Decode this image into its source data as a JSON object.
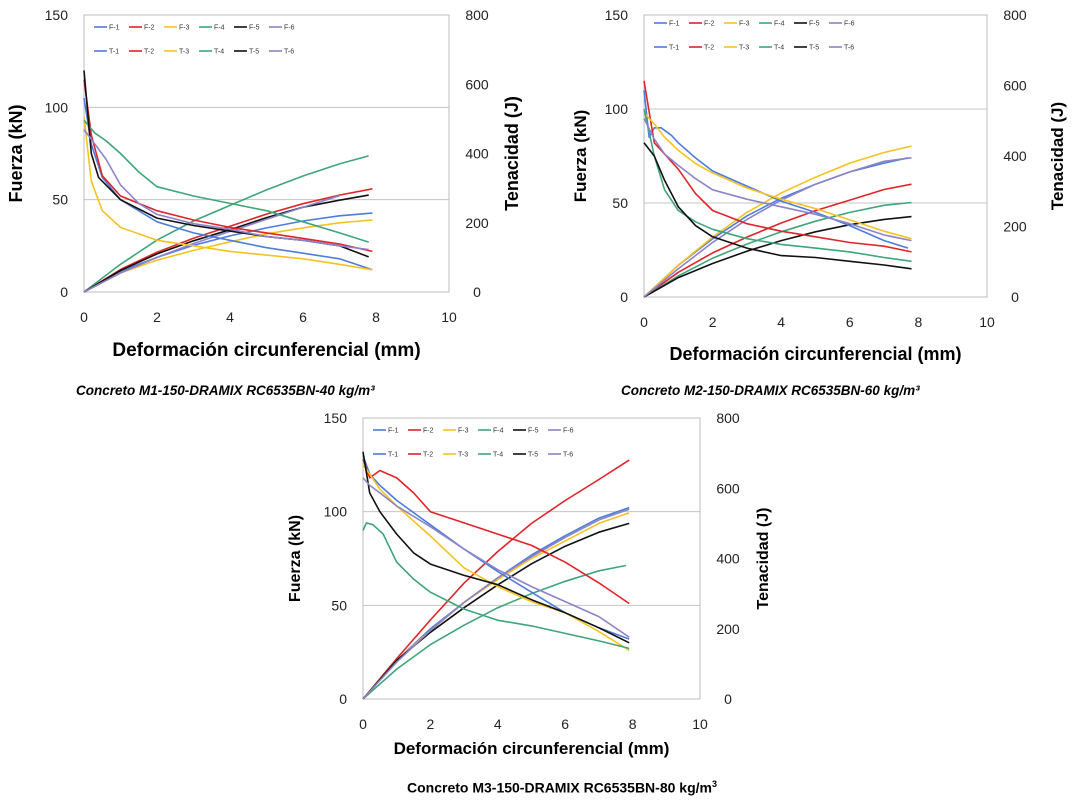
{
  "colors": {
    "series1": "#4f7ddb",
    "series2": "#e0242a",
    "series3": "#f5c31f",
    "series4": "#3fa57a",
    "series5": "#111111",
    "series6": "#8c84c8",
    "grid": "#c4c4c4"
  },
  "chart_data": [
    {
      "type": "line",
      "title": "",
      "caption": "Concreto M1-150-DRAMIX RC6535BN-40 kg/m³",
      "xlabel": "Deformación circunferencial (mm)",
      "ylabel": "Fuerza (kN)",
      "y2label": "Tenacidad (J)",
      "xlim": [
        0,
        10
      ],
      "ylim": [
        0,
        150
      ],
      "y2lim": [
        0,
        800
      ],
      "xticks": [
        "0",
        "2",
        "4",
        "6",
        "8",
        "10"
      ],
      "yticks": [
        "0",
        "50",
        "100",
        "150"
      ],
      "y2ticks": [
        "0",
        "200",
        "400",
        "600",
        "800"
      ],
      "grid": "horizontal",
      "legend": "top-left",
      "legend_row1": [
        "F-1",
        "F-2",
        "F-3",
        "F-4",
        "F-5",
        "F-6"
      ],
      "legend_row2": [
        "T-1",
        "T-2",
        "T-3",
        "T-4",
        "T-5",
        "T-6"
      ],
      "force_series": [
        {
          "name": "F-1",
          "x": [
            0,
            0.2,
            0.5,
            1,
            2,
            3,
            4,
            5,
            6,
            7,
            7.9
          ],
          "y": [
            105,
            80,
            62,
            50,
            38,
            32,
            28,
            24,
            21,
            18,
            12
          ]
        },
        {
          "name": "F-2",
          "x": [
            0,
            0.2,
            0.5,
            1,
            2,
            3,
            4,
            5,
            6,
            7,
            7.9
          ],
          "y": [
            115,
            85,
            63,
            52,
            44,
            39,
            35,
            32,
            29,
            26,
            22
          ]
        },
        {
          "name": "F-3",
          "x": [
            0,
            0.2,
            0.5,
            1,
            2,
            3,
            4,
            5,
            6,
            7,
            7.9
          ],
          "y": [
            95,
            60,
            44,
            35,
            28,
            25,
            22,
            20,
            18,
            15,
            12
          ]
        },
        {
          "name": "F-4",
          "x": [
            0,
            0.3,
            0.6,
            1,
            1.5,
            2,
            3,
            4,
            5,
            6,
            7,
            7.8
          ],
          "y": [
            93,
            86,
            82,
            75,
            65,
            57,
            52,
            48,
            44,
            38,
            32,
            27
          ]
        },
        {
          "name": "F-5",
          "x": [
            0,
            0.2,
            0.4,
            1,
            2,
            3,
            4,
            5,
            6,
            7,
            7.8
          ],
          "y": [
            120,
            75,
            62,
            50,
            40,
            36,
            33,
            30,
            28,
            25,
            19
          ]
        },
        {
          "name": "F-6",
          "x": [
            0,
            0.3,
            0.6,
            1,
            1.5,
            2,
            3,
            4,
            5,
            6,
            7,
            7.8
          ],
          "y": [
            88,
            80,
            72,
            58,
            48,
            42,
            37,
            34,
            30,
            28,
            25,
            23
          ]
        }
      ],
      "toughness_series": [
        {
          "name": "T-1",
          "x": [
            0,
            1,
            2,
            3,
            4,
            5,
            6,
            7,
            7.9
          ],
          "y": [
            0,
            60,
            100,
            135,
            162,
            185,
            205,
            220,
            228
          ]
        },
        {
          "name": "T-2",
          "x": [
            0,
            1,
            2,
            3,
            4,
            5,
            6,
            7,
            7.9
          ],
          "y": [
            0,
            65,
            115,
            155,
            190,
            225,
            255,
            280,
            298
          ]
        },
        {
          "name": "T-3",
          "x": [
            0,
            1,
            2,
            3,
            4,
            5,
            6,
            7,
            7.9
          ],
          "y": [
            0,
            55,
            92,
            120,
            145,
            168,
            185,
            200,
            208
          ]
        },
        {
          "name": "T-4",
          "x": [
            0,
            1,
            2,
            3,
            4,
            5,
            6,
            7,
            7.8
          ],
          "y": [
            0,
            80,
            150,
            205,
            250,
            295,
            335,
            370,
            393
          ]
        },
        {
          "name": "T-5",
          "x": [
            0,
            1,
            2,
            3,
            4,
            5,
            6,
            7,
            7.8
          ],
          "y": [
            0,
            62,
            110,
            148,
            180,
            215,
            245,
            265,
            280
          ]
        },
        {
          "name": "T-6",
          "x": [
            0,
            1,
            2,
            3,
            4,
            5,
            6,
            7
          ],
          "y": [
            0,
            55,
            100,
            140,
            175,
            210,
            245,
            278
          ]
        }
      ]
    },
    {
      "type": "line",
      "title": "",
      "caption": "Concreto M2-150-DRAMIX RC6535BN-60 kg/m³",
      "xlabel": "Deformación circunferencial (mm)",
      "ylabel": "Fuerza (kN)",
      "y2label": "Tenacidad (J)",
      "xlim": [
        0,
        10
      ],
      "ylim": [
        0,
        150
      ],
      "y2lim": [
        0,
        800
      ],
      "xticks": [
        "0",
        "2",
        "4",
        "6",
        "8",
        "10"
      ],
      "yticks": [
        "0",
        "50",
        "100",
        "150"
      ],
      "y2ticks": [
        "0",
        "200",
        "400",
        "600",
        "800"
      ],
      "grid": "horizontal",
      "legend": "top-left",
      "legend_row1": [
        "F-1",
        "F-2",
        "F-3",
        "F-4",
        "F-5",
        "F-6"
      ],
      "legend_row2": [
        "T-1",
        "T-2",
        "T-3",
        "T-4",
        "T-5",
        "T-6"
      ],
      "force_series": [
        {
          "name": "F-1",
          "x": [
            0,
            0.15,
            0.3,
            0.5,
            0.8,
            1,
            1.5,
            2,
            3,
            4,
            5,
            6,
            7,
            7.7
          ],
          "y": [
            110,
            85,
            90,
            90,
            86,
            82,
            74,
            67,
            59,
            51,
            45,
            38,
            30,
            26
          ]
        },
        {
          "name": "F-2",
          "x": [
            0,
            0.3,
            0.6,
            1,
            1.5,
            2,
            3,
            4,
            5,
            6,
            7,
            7.8
          ],
          "y": [
            115,
            82,
            76,
            68,
            55,
            46,
            39,
            35,
            32,
            29,
            27,
            24
          ]
        },
        {
          "name": "F-3",
          "x": [
            0,
            0.3,
            0.6,
            1,
            1.5,
            2,
            3,
            4,
            5,
            6,
            7,
            7.8
          ],
          "y": [
            98,
            92,
            85,
            78,
            71,
            66,
            58,
            52,
            47,
            41,
            35,
            31
          ]
        },
        {
          "name": "F-4",
          "x": [
            0,
            0.3,
            0.6,
            1,
            1.5,
            2,
            3,
            4,
            5,
            6,
            7,
            7.8
          ],
          "y": [
            100,
            75,
            57,
            46,
            40,
            36,
            31,
            28,
            26,
            24,
            21,
            19
          ]
        },
        {
          "name": "F-5",
          "x": [
            0,
            0.3,
            0.6,
            1,
            1.5,
            2,
            3,
            4,
            5,
            6,
            7,
            7.8
          ],
          "y": [
            82,
            75,
            62,
            48,
            38,
            32,
            26,
            22,
            21,
            19,
            17,
            15
          ]
        },
        {
          "name": "F-6",
          "x": [
            0,
            0.3,
            0.6,
            1,
            1.5,
            2,
            3,
            4,
            5,
            6,
            7,
            7.8
          ],
          "y": [
            95,
            84,
            76,
            70,
            63,
            57,
            52,
            48,
            44,
            39,
            33,
            30
          ]
        }
      ],
      "toughness_series": [
        {
          "name": "T-1",
          "x": [
            0,
            1,
            2,
            3,
            4,
            5,
            6,
            7,
            7.7
          ],
          "y": [
            0,
            90,
            165,
            230,
            280,
            320,
            355,
            380,
            395
          ]
        },
        {
          "name": "T-2",
          "x": [
            0,
            1,
            2,
            3,
            4,
            5,
            6,
            7,
            7.8
          ],
          "y": [
            0,
            70,
            125,
            170,
            210,
            245,
            275,
            305,
            320
          ]
        },
        {
          "name": "T-3",
          "x": [
            0,
            1,
            2,
            3,
            4,
            5,
            6,
            7,
            7.8
          ],
          "y": [
            0,
            90,
            170,
            240,
            295,
            340,
            380,
            410,
            428
          ]
        },
        {
          "name": "T-4",
          "x": [
            0,
            1,
            2,
            3,
            4,
            5,
            6,
            7,
            7.8
          ],
          "y": [
            0,
            60,
            110,
            150,
            185,
            215,
            240,
            260,
            268
          ]
        },
        {
          "name": "T-5",
          "x": [
            0,
            1,
            2,
            3,
            4,
            5,
            6,
            7,
            7.8
          ],
          "y": [
            0,
            55,
            95,
            130,
            160,
            185,
            205,
            220,
            228
          ]
        },
        {
          "name": "T-6",
          "x": [
            0,
            1,
            2,
            3,
            4,
            5,
            6,
            7,
            7.8
          ],
          "y": [
            0,
            80,
            155,
            220,
            275,
            320,
            355,
            385,
            395
          ]
        }
      ]
    },
    {
      "type": "line",
      "title": "",
      "caption": "Concreto M3-150-DRAMIX RC6535BN-80 kg/m",
      "caption_superscript": "3",
      "xlabel": "Deformación circunferencial (mm)",
      "ylabel": "Fuerza (kN)",
      "y2label": "Tenacidad (J)",
      "xlim": [
        0,
        10
      ],
      "ylim": [
        0,
        150
      ],
      "y2lim": [
        0,
        800
      ],
      "xticks": [
        "0",
        "2",
        "4",
        "6",
        "8",
        "10"
      ],
      "yticks": [
        "0",
        "50",
        "100",
        "150"
      ],
      "y2ticks": [
        "0",
        "200",
        "400",
        "600",
        "800"
      ],
      "grid": "horizontal",
      "legend": "top-left",
      "legend_row1": [
        "F-1",
        "F-2",
        "F-3",
        "F-4",
        "F-5",
        "F-6"
      ],
      "legend_row2": [
        "T-1",
        "T-2",
        "T-3",
        "T-4",
        "T-5",
        "T-6"
      ],
      "force_series": [
        {
          "name": "F-1",
          "x": [
            0,
            0.2,
            0.5,
            1,
            2,
            3,
            4,
            5,
            6,
            7,
            7.9
          ],
          "y": [
            130,
            120,
            114,
            106,
            93,
            80,
            68,
            57,
            46,
            38,
            32
          ]
        },
        {
          "name": "F-2",
          "x": [
            0,
            0.2,
            0.5,
            1,
            1.5,
            2,
            3,
            4,
            5,
            6,
            7,
            7.9
          ],
          "y": [
            128,
            118,
            122,
            118,
            110,
            100,
            94,
            88,
            82,
            73,
            62,
            51
          ]
        },
        {
          "name": "F-3",
          "x": [
            0,
            0.2,
            0.5,
            1,
            2,
            3,
            4,
            5,
            6,
            7,
            7.9
          ],
          "y": [
            125,
            120,
            112,
            103,
            87,
            70,
            60,
            52,
            46,
            36,
            26
          ]
        },
        {
          "name": "F-4",
          "x": [
            0,
            0.1,
            0.3,
            0.6,
            1,
            1.5,
            2,
            3,
            4,
            5,
            6,
            7,
            7.9
          ],
          "y": [
            90,
            94,
            93,
            88,
            73,
            64,
            57,
            48,
            42,
            39,
            35,
            31,
            27
          ]
        },
        {
          "name": "F-5",
          "x": [
            0,
            0.2,
            0.5,
            1,
            1.5,
            2,
            3,
            4,
            5,
            6,
            7,
            7.9
          ],
          "y": [
            132,
            110,
            100,
            88,
            78,
            72,
            66,
            61,
            53,
            46,
            38,
            30
          ]
        },
        {
          "name": "F-6",
          "x": [
            0,
            0.2,
            0.5,
            1,
            2,
            3,
            4,
            5,
            6,
            7,
            7.9
          ],
          "y": [
            118,
            114,
            110,
            103,
            92,
            80,
            69,
            60,
            52,
            44,
            33
          ]
        }
      ],
      "toughness_series": [
        {
          "name": "T-1",
          "x": [
            0,
            1,
            2,
            3,
            4,
            5,
            6,
            7,
            7.9
          ],
          "y": [
            0,
            110,
            200,
            275,
            345,
            410,
            465,
            515,
            545
          ]
        },
        {
          "name": "T-2",
          "x": [
            0,
            1,
            2,
            3,
            4,
            5,
            6,
            7,
            7.9
          ],
          "y": [
            0,
            115,
            225,
            330,
            420,
            500,
            565,
            625,
            680
          ]
        },
        {
          "name": "T-3",
          "x": [
            0,
            1,
            2,
            3,
            4,
            5,
            6,
            7,
            7.9
          ],
          "y": [
            0,
            110,
            195,
            275,
            340,
            400,
            450,
            500,
            530
          ]
        },
        {
          "name": "T-4",
          "x": [
            0,
            1,
            2,
            3,
            4,
            5,
            6,
            7,
            7.8
          ],
          "y": [
            0,
            85,
            155,
            210,
            260,
            300,
            335,
            365,
            380
          ]
        },
        {
          "name": "T-5",
          "x": [
            0,
            1,
            2,
            3,
            4,
            5,
            6,
            7,
            7.9
          ],
          "y": [
            0,
            110,
            190,
            260,
            325,
            385,
            435,
            475,
            500
          ]
        },
        {
          "name": "T-6",
          "x": [
            0,
            1,
            2,
            3,
            4,
            5,
            6,
            7,
            7.9
          ],
          "y": [
            0,
            105,
            195,
            275,
            345,
            405,
            460,
            510,
            540
          ]
        }
      ]
    }
  ]
}
